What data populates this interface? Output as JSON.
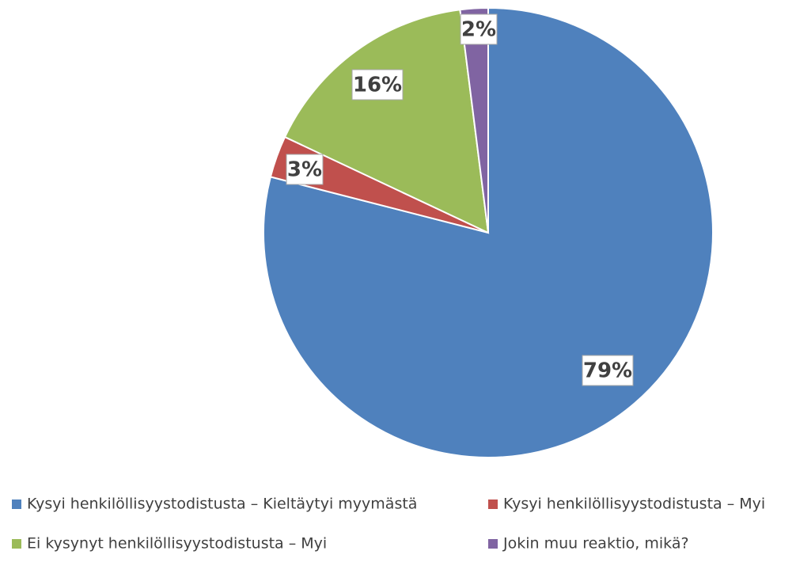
{
  "chart_data": {
    "type": "pie",
    "categories": [
      "Kysyi henkilöllisyystodistusta – Kieltäytyi myymästä",
      "Kysyi henkilöllisyystodistusta – Myi",
      "Ei kysynyt henkilöllisyystodistusta – Myi",
      "Jokin muu reaktio, mikä?"
    ],
    "values": [
      79,
      3,
      16,
      2
    ],
    "value_labels": [
      "79%",
      "3%",
      "16%",
      "2%"
    ],
    "colors": [
      "#4f81bd",
      "#c0504d",
      "#9bbb59",
      "#8064a2"
    ],
    "legend": "bottom"
  }
}
